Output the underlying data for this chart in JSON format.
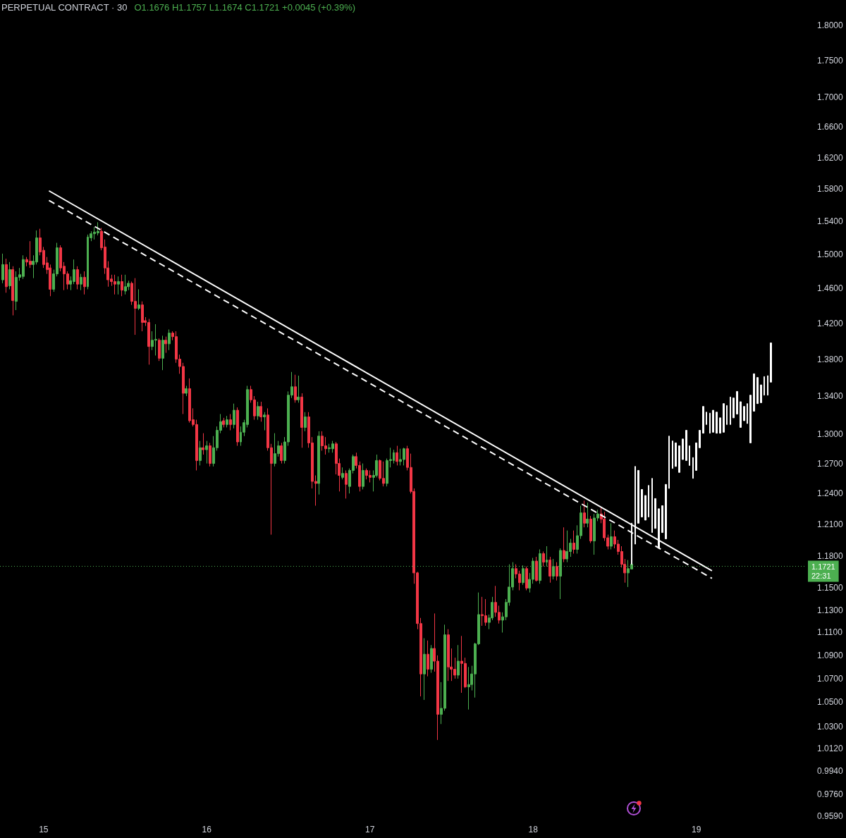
{
  "chart_data": {
    "type": "candlestick",
    "title": "PERPETUAL CONTRACT · 30",
    "subtitle": "O1.1676 H1.1757 L1.1674 C1.1721 +0.0045 (+0.39%)",
    "xlim": [
      14.733,
      19.671
    ],
    "xticks": [
      15,
      16,
      17,
      18,
      19
    ],
    "ylim": [
      0.959,
      1.837
    ],
    "log": true,
    "yticks": [
      {
        "value": 1.8,
        "label": "1.8000"
      },
      {
        "value": 1.75,
        "label": "1.7500"
      },
      {
        "value": 1.7,
        "label": "1.7000"
      },
      {
        "value": 1.66,
        "label": "1.6600"
      },
      {
        "value": 1.62,
        "label": "1.6200"
      },
      {
        "value": 1.58,
        "label": "1.5800"
      },
      {
        "value": 1.54,
        "label": "1.5400"
      },
      {
        "value": 1.5,
        "label": "1.5000"
      },
      {
        "value": 1.46,
        "label": "1.4600"
      },
      {
        "value": 1.42,
        "label": "1.4200"
      },
      {
        "value": 1.38,
        "label": "1.3800"
      },
      {
        "value": 1.34,
        "label": "1.3400"
      },
      {
        "value": 1.3,
        "label": "1.3000"
      },
      {
        "value": 1.27,
        "label": "1.2700"
      },
      {
        "value": 1.24,
        "label": "1.2400"
      },
      {
        "value": 1.21,
        "label": "1.2100"
      },
      {
        "value": 1.18,
        "label": "1.1800"
      },
      {
        "value": 1.15,
        "label": "1.1500"
      },
      {
        "value": 1.13,
        "label": "1.1300"
      },
      {
        "value": 1.11,
        "label": "1.1100"
      },
      {
        "value": 1.09,
        "label": "1.0900"
      },
      {
        "value": 1.07,
        "label": "1.0700"
      },
      {
        "value": 1.05,
        "label": "1.0500"
      },
      {
        "value": 1.03,
        "label": "1.0300"
      },
      {
        "value": 1.012,
        "label": "1.0120"
      },
      {
        "value": 0.994,
        "label": "0.9940"
      },
      {
        "value": 0.976,
        "label": "0.9760"
      },
      {
        "value": 0.959,
        "label": "0.9590"
      }
    ],
    "grid": false,
    "ref_lines": [
      {
        "axis": "y",
        "value": 1.1721,
        "label": "1.1721\n22:31",
        "color": "#4caf50",
        "line_style": "dotted"
      }
    ],
    "series": [
      {
        "x": [
          14.75,
          14.7708,
          14.7917,
          14.8125,
          14.8333,
          14.8542,
          14.875,
          14.8958,
          14.9167,
          14.9375,
          14.9583,
          14.9792,
          15,
          15.0208,
          15.0417,
          15.0625,
          15.0833,
          15.1042,
          15.125,
          15.1458,
          15.1667,
          15.1875,
          15.2083,
          15.2292,
          15.25,
          15.2708,
          15.2917,
          15.3125,
          15.3333,
          15.3542,
          15.375,
          15.3958,
          15.4167,
          15.4375,
          15.4583,
          15.4792,
          15.5,
          15.5208,
          15.5417,
          15.5625,
          15.5833,
          15.6042,
          15.625,
          15.6458,
          15.6667,
          15.6875,
          15.7083,
          15.7292,
          15.75,
          15.7708,
          15.7917,
          15.8125,
          15.8333,
          15.8542,
          15.875,
          15.8958,
          15.9167,
          15.9375,
          15.9583,
          15.9792,
          16,
          16.0208,
          16.0417,
          16.0625,
          16.0833,
          16.1042,
          16.125,
          16.1458,
          16.1667,
          16.1875,
          16.2083,
          16.2292,
          16.25,
          16.2708,
          16.2917,
          16.3125,
          16.3333,
          16.3542,
          16.375,
          16.3958,
          16.4167,
          16.4375,
          16.4583,
          16.4792,
          16.5,
          16.5208,
          16.5417,
          16.5625,
          16.5833,
          16.6042,
          16.625,
          16.6458,
          16.6667,
          16.6875,
          16.7083,
          16.7292,
          16.75,
          16.7708,
          16.7917,
          16.8125,
          16.8333,
          16.8542,
          16.875,
          16.8958,
          16.9167,
          16.9375,
          16.9583,
          16.9792,
          17,
          17.0208,
          17.0417,
          17.0625,
          17.0833,
          17.1042,
          17.125,
          17.1458,
          17.1667,
          17.1875,
          17.2083,
          17.2292,
          17.25,
          17.2708,
          17.2917,
          17.3125,
          17.3333,
          17.3542,
          17.375,
          17.3958,
          17.4167,
          17.4375,
          17.4583,
          17.4792,
          17.5,
          17.5208,
          17.5417,
          17.5625,
          17.5833,
          17.6042,
          17.625,
          17.6458,
          17.6667,
          17.6875,
          17.7083,
          17.7292,
          17.75,
          17.7708,
          17.7917,
          17.8125,
          17.8333,
          17.8542,
          17.875,
          17.8958,
          17.9167,
          17.9375,
          17.9583,
          17.9792,
          18,
          18.0208,
          18.0417,
          18.0625,
          18.0833,
          18.1042,
          18.125,
          18.1458,
          18.1667,
          18.1875,
          18.2083,
          18.2292,
          18.25,
          18.2708,
          18.2917,
          18.3125,
          18.3333,
          18.3542,
          18.375,
          18.3958,
          18.4167,
          18.4375,
          18.4583,
          18.4792,
          18.5,
          18.5208,
          18.5417,
          18.5625,
          18.5833,
          18.6042
        ],
        "ohlc": [
          [
            1.47,
            1.501,
            1.466,
            1.488
          ],
          [
            1.488,
            1.495,
            1.455,
            1.462
          ],
          [
            1.463,
            1.491,
            1.459,
            1.482
          ],
          [
            1.482,
            1.486,
            1.429,
            1.446
          ],
          [
            1.445,
            1.48,
            1.435,
            1.473
          ],
          [
            1.473,
            1.484,
            1.469,
            1.476
          ],
          [
            1.474,
            1.499,
            1.471,
            1.494
          ],
          [
            1.494,
            1.497,
            1.486,
            1.491
          ],
          [
            1.492,
            1.516,
            1.484,
            1.488
          ],
          [
            1.488,
            1.499,
            1.472,
            1.492
          ],
          [
            1.491,
            1.529,
            1.488,
            1.52
          ],
          [
            1.52,
            1.531,
            1.499,
            1.503
          ],
          [
            1.505,
            1.509,
            1.484,
            1.488
          ],
          [
            1.49,
            1.497,
            1.477,
            1.482
          ],
          [
            1.484,
            1.488,
            1.451,
            1.459
          ],
          [
            1.459,
            1.482,
            1.456,
            1.477
          ],
          [
            1.477,
            1.514,
            1.474,
            1.508
          ],
          [
            1.508,
            1.511,
            1.48,
            1.484
          ],
          [
            1.486,
            1.491,
            1.458,
            1.477
          ],
          [
            1.477,
            1.48,
            1.459,
            1.465
          ],
          [
            1.465,
            1.474,
            1.458,
            1.469
          ],
          [
            1.468,
            1.494,
            1.465,
            1.482
          ],
          [
            1.482,
            1.486,
            1.459,
            1.465
          ],
          [
            1.465,
            1.477,
            1.458,
            1.473
          ],
          [
            1.473,
            1.48,
            1.453,
            1.462
          ],
          [
            1.462,
            1.524,
            1.459,
            1.521
          ],
          [
            1.52,
            1.528,
            1.516,
            1.525
          ],
          [
            1.525,
            1.533,
            1.518,
            1.527
          ],
          [
            1.526,
            1.539,
            1.523,
            1.528
          ],
          [
            1.528,
            1.532,
            1.505,
            1.508
          ],
          [
            1.509,
            1.518,
            1.477,
            1.484
          ],
          [
            1.484,
            1.492,
            1.462,
            1.47
          ],
          [
            1.471,
            1.476,
            1.463,
            1.468
          ],
          [
            1.468,
            1.476,
            1.453,
            1.465
          ],
          [
            1.465,
            1.474,
            1.453,
            1.468
          ],
          [
            1.468,
            1.476,
            1.451,
            1.458
          ],
          [
            1.457,
            1.476,
            1.453,
            1.462
          ],
          [
            1.462,
            1.469,
            1.458,
            1.466
          ],
          [
            1.466,
            1.468,
            1.441,
            1.445
          ],
          [
            1.445,
            1.472,
            1.407,
            1.437
          ],
          [
            1.437,
            1.459,
            1.435,
            1.441
          ],
          [
            1.441,
            1.445,
            1.411,
            1.421
          ],
          [
            1.423,
            1.427,
            1.417,
            1.421
          ],
          [
            1.421,
            1.425,
            1.374,
            1.394
          ],
          [
            1.394,
            1.411,
            1.39,
            1.401
          ],
          [
            1.401,
            1.419,
            1.384,
            1.402
          ],
          [
            1.401,
            1.403,
            1.378,
            1.381
          ],
          [
            1.381,
            1.406,
            1.368,
            1.401
          ],
          [
            1.401,
            1.405,
            1.387,
            1.397
          ],
          [
            1.397,
            1.413,
            1.39,
            1.409
          ],
          [
            1.409,
            1.411,
            1.401,
            1.405
          ],
          [
            1.405,
            1.411,
            1.376,
            1.38
          ],
          [
            1.38,
            1.385,
            1.364,
            1.372
          ],
          [
            1.372,
            1.376,
            1.321,
            1.343
          ],
          [
            1.343,
            1.351,
            1.34,
            1.348
          ],
          [
            1.348,
            1.359,
            1.312,
            1.314
          ],
          [
            1.315,
            1.327,
            1.308,
            1.31
          ],
          [
            1.31,
            1.315,
            1.263,
            1.273
          ],
          [
            1.273,
            1.293,
            1.268,
            1.286
          ],
          [
            1.286,
            1.301,
            1.279,
            1.284
          ],
          [
            1.284,
            1.293,
            1.27,
            1.288
          ],
          [
            1.288,
            1.291,
            1.267,
            1.27
          ],
          [
            1.27,
            1.298,
            1.267,
            1.286
          ],
          [
            1.286,
            1.308,
            1.283,
            1.304
          ],
          [
            1.304,
            1.321,
            1.301,
            1.313
          ],
          [
            1.314,
            1.317,
            1.307,
            1.31
          ],
          [
            1.31,
            1.319,
            1.307,
            1.315
          ],
          [
            1.315,
            1.321,
            1.304,
            1.31
          ],
          [
            1.31,
            1.332,
            1.306,
            1.325
          ],
          [
            1.325,
            1.328,
            1.288,
            1.292
          ],
          [
            1.292,
            1.308,
            1.288,
            1.302
          ],
          [
            1.302,
            1.315,
            1.298,
            1.312
          ],
          [
            1.31,
            1.351,
            1.307,
            1.347
          ],
          [
            1.347,
            1.351,
            1.333,
            1.336
          ],
          [
            1.336,
            1.34,
            1.315,
            1.319
          ],
          [
            1.319,
            1.334,
            1.315,
            1.329
          ],
          [
            1.329,
            1.334,
            1.313,
            1.318
          ],
          [
            1.318,
            1.323,
            1.304,
            1.32
          ],
          [
            1.32,
            1.327,
            1.283,
            1.286
          ],
          [
            1.286,
            1.29,
            1.2,
            1.27
          ],
          [
            1.27,
            1.301,
            1.267,
            1.28
          ],
          [
            1.28,
            1.293,
            1.277,
            1.288
          ],
          [
            1.288,
            1.291,
            1.27,
            1.273
          ],
          [
            1.273,
            1.297,
            1.27,
            1.292
          ],
          [
            1.292,
            1.345,
            1.288,
            1.341
          ],
          [
            1.341,
            1.366,
            1.338,
            1.35
          ],
          [
            1.35,
            1.363,
            1.333,
            1.336
          ],
          [
            1.336,
            1.362,
            1.333,
            1.339
          ],
          [
            1.339,
            1.343,
            1.286,
            1.307
          ],
          [
            1.307,
            1.323,
            1.303,
            1.318
          ],
          [
            1.318,
            1.323,
            1.286,
            1.291
          ],
          [
            1.291,
            1.297,
            1.245,
            1.252
          ],
          [
            1.252,
            1.258,
            1.228,
            1.25
          ],
          [
            1.25,
            1.303,
            1.239,
            1.298
          ],
          [
            1.298,
            1.303,
            1.283,
            1.288
          ],
          [
            1.288,
            1.297,
            1.279,
            1.285
          ],
          [
            1.285,
            1.29,
            1.281,
            1.286
          ],
          [
            1.285,
            1.293,
            1.281,
            1.29
          ],
          [
            1.29,
            1.292,
            1.259,
            1.27
          ],
          [
            1.27,
            1.275,
            1.242,
            1.258
          ],
          [
            1.256,
            1.266,
            1.254,
            1.26
          ],
          [
            1.26,
            1.263,
            1.235,
            1.249
          ],
          [
            1.247,
            1.265,
            1.24,
            1.263
          ],
          [
            1.263,
            1.279,
            1.26,
            1.277
          ],
          [
            1.277,
            1.281,
            1.265,
            1.268
          ],
          [
            1.268,
            1.272,
            1.242,
            1.247
          ],
          [
            1.247,
            1.27,
            1.244,
            1.263
          ],
          [
            1.263,
            1.265,
            1.254,
            1.258
          ],
          [
            1.258,
            1.263,
            1.251,
            1.256
          ],
          [
            1.256,
            1.263,
            1.242,
            1.258
          ],
          [
            1.258,
            1.279,
            1.256,
            1.273
          ],
          [
            1.273,
            1.274,
            1.253,
            1.255
          ],
          [
            1.255,
            1.272,
            1.247,
            1.25
          ],
          [
            1.25,
            1.275,
            1.247,
            1.273
          ],
          [
            1.273,
            1.286,
            1.266,
            1.274
          ],
          [
            1.273,
            1.284,
            1.27,
            1.281
          ],
          [
            1.281,
            1.288,
            1.268,
            1.272
          ],
          [
            1.272,
            1.285,
            1.268,
            1.274
          ],
          [
            1.274,
            1.286,
            1.268,
            1.285
          ],
          [
            1.285,
            1.288,
            1.263,
            1.266
          ],
          [
            1.266,
            1.28,
            1.24,
            1.242
          ],
          [
            1.242,
            1.245,
            1.154,
            1.164
          ],
          [
            1.164,
            1.165,
            1.113,
            1.118
          ],
          [
            1.118,
            1.123,
            1.055,
            1.074
          ],
          [
            1.074,
            1.105,
            1.052,
            1.091
          ],
          [
            1.091,
            1.103,
            1.072,
            1.078
          ],
          [
            1.078,
            1.099,
            1.075,
            1.096
          ],
          [
            1.096,
            1.127,
            1.076,
            1.085
          ],
          [
            1.085,
            1.09,
            1.019,
            1.04
          ],
          [
            1.04,
            1.067,
            1.032,
            1.045
          ],
          [
            1.045,
            1.117,
            1.043,
            1.108
          ],
          [
            1.108,
            1.113,
            1.068,
            1.08
          ],
          [
            1.08,
            1.096,
            1.068,
            1.078
          ],
          [
            1.078,
            1.088,
            1.07,
            1.073
          ],
          [
            1.073,
            1.099,
            1.07,
            1.085
          ],
          [
            1.085,
            1.107,
            1.058,
            1.083
          ],
          [
            1.083,
            1.088,
            1.062,
            1.063
          ],
          [
            1.063,
            1.08,
            1.044,
            1.065
          ],
          [
            1.065,
            1.081,
            1.06,
            1.074
          ],
          [
            1.074,
            1.101,
            1.054,
            1.1
          ],
          [
            1.1,
            1.146,
            1.099,
            1.126
          ],
          [
            1.126,
            1.142,
            1.116,
            1.125
          ],
          [
            1.125,
            1.14,
            1.116,
            1.119
          ],
          [
            1.119,
            1.126,
            1.113,
            1.123
          ],
          [
            1.123,
            1.142,
            1.121,
            1.137
          ],
          [
            1.137,
            1.152,
            1.124,
            1.128
          ],
          [
            1.128,
            1.134,
            1.118,
            1.121
          ],
          [
            1.121,
            1.128,
            1.11,
            1.124
          ],
          [
            1.124,
            1.14,
            1.121,
            1.137
          ],
          [
            1.137,
            1.172,
            1.134,
            1.151
          ],
          [
            1.151,
            1.174,
            1.148,
            1.168
          ],
          [
            1.168,
            1.172,
            1.159,
            1.163
          ],
          [
            1.163,
            1.166,
            1.148,
            1.155
          ],
          [
            1.155,
            1.171,
            1.153,
            1.168
          ],
          [
            1.168,
            1.17,
            1.148,
            1.15
          ],
          [
            1.15,
            1.164,
            1.146,
            1.158
          ],
          [
            1.158,
            1.178,
            1.154,
            1.175
          ],
          [
            1.175,
            1.179,
            1.156,
            1.157
          ],
          [
            1.157,
            1.186,
            1.154,
            1.182
          ],
          [
            1.182,
            1.184,
            1.17,
            1.174
          ],
          [
            1.174,
            1.189,
            1.17,
            1.176
          ],
          [
            1.176,
            1.179,
            1.155,
            1.161
          ],
          [
            1.161,
            1.177,
            1.158,
            1.17
          ],
          [
            1.17,
            1.174,
            1.157,
            1.161
          ],
          [
            1.161,
            1.187,
            1.14,
            1.185
          ],
          [
            1.185,
            1.207,
            1.174,
            1.177
          ],
          [
            1.177,
            1.204,
            1.174,
            1.184
          ],
          [
            1.184,
            1.196,
            1.179,
            1.192
          ],
          [
            1.192,
            1.204,
            1.182,
            1.186
          ],
          [
            1.186,
            1.209,
            1.182,
            1.199
          ],
          [
            1.199,
            1.228,
            1.196,
            1.221
          ],
          [
            1.221,
            1.233,
            1.207,
            1.211
          ],
          [
            1.211,
            1.231,
            1.207,
            1.215
          ],
          [
            1.215,
            1.218,
            1.192,
            1.194
          ],
          [
            1.194,
            1.22,
            1.181,
            1.216
          ],
          [
            1.216,
            1.224,
            1.213,
            1.22
          ],
          [
            1.22,
            1.226,
            1.211,
            1.215
          ],
          [
            1.215,
            1.222,
            1.194,
            1.197
          ],
          [
            1.197,
            1.2,
            1.186,
            1.189
          ],
          [
            1.189,
            1.211,
            1.186,
            1.198
          ],
          [
            1.198,
            1.204,
            1.187,
            1.191
          ],
          [
            1.191,
            1.195,
            1.181,
            1.184
          ],
          [
            1.184,
            1.189,
            1.169,
            1.172
          ],
          [
            1.172,
            1.177,
            1.155,
            1.164
          ],
          [
            1.164,
            1.176,
            1.151,
            1.168
          ],
          [
            1.1676,
            1.1757,
            1.1674,
            1.1721
          ]
        ],
        "colors": [
          "#4caf50",
          "#f23645",
          "#4caf50",
          "#f23645",
          "#4caf50",
          "#4caf50",
          "#4caf50",
          "#f23645",
          "#f23645",
          "#4caf50",
          "#4caf50",
          "#f23645",
          "#f23645",
          "#f23645",
          "#f23645",
          "#4caf50",
          "#4caf50",
          "#f23645",
          "#f23645",
          "#f23645",
          "#4caf50",
          "#4caf50",
          "#f23645",
          "#4caf50",
          "#f23645",
          "#4caf50",
          "#4caf50",
          "#4caf50",
          "#4caf50",
          "#f23645",
          "#f23645",
          "#f23645",
          "#f23645",
          "#f23645",
          "#4caf50",
          "#f23645",
          "#4caf50",
          "#4caf50",
          "#f23645",
          "#f23645",
          "#4caf50",
          "#f23645",
          "#f23645",
          "#f23645",
          "#4caf50",
          "#4caf50",
          "#f23645",
          "#4caf50",
          "#f23645",
          "#4caf50",
          "#f23645",
          "#f23645",
          "#f23645",
          "#f23645",
          "#4caf50",
          "#f23645",
          "#f23645",
          "#f23645",
          "#4caf50",
          "#f23645",
          "#4caf50",
          "#f23645",
          "#4caf50",
          "#4caf50",
          "#4caf50",
          "#f23645",
          "#4caf50",
          "#f23645",
          "#4caf50",
          "#f23645",
          "#4caf50",
          "#4caf50",
          "#4caf50",
          "#f23645",
          "#f23645",
          "#4caf50",
          "#f23645",
          "#4caf50",
          "#f23645",
          "#f23645",
          "#4caf50",
          "#4caf50",
          "#f23645",
          "#4caf50",
          "#4caf50",
          "#4caf50",
          "#f23645",
          "#4caf50",
          "#f23645",
          "#4caf50",
          "#f23645",
          "#f23645",
          "#f23645",
          "#4caf50",
          "#f23645",
          "#f23645",
          "#4caf50",
          "#4caf50",
          "#f23645",
          "#f23645",
          "#4caf50",
          "#f23645",
          "#4caf50",
          "#4caf50",
          "#f23645",
          "#f23645",
          "#4caf50",
          "#f23645",
          "#f23645",
          "#4caf50",
          "#4caf50",
          "#f23645",
          "#f23645",
          "#4caf50",
          "#4caf50",
          "#4caf50",
          "#f23645",
          "#4caf50",
          "#4caf50",
          "#f23645",
          "#f23645",
          "#f23645",
          "#f23645",
          "#f23645",
          "#4caf50",
          "#f23645",
          "#4caf50",
          "#f23645",
          "#f23645",
          "#4caf50",
          "#4caf50",
          "#f23645",
          "#f23645",
          "#f23645",
          "#4caf50",
          "#f23645",
          "#f23645",
          "#4caf50",
          "#4caf50",
          "#4caf50",
          "#4caf50",
          "#f23645",
          "#f23645",
          "#4caf50",
          "#4caf50",
          "#f23645",
          "#f23645",
          "#4caf50",
          "#4caf50",
          "#4caf50",
          "#4caf50",
          "#f23645",
          "#f23645",
          "#4caf50",
          "#f23645",
          "#4caf50",
          "#4caf50",
          "#f23645",
          "#4caf50",
          "#f23645",
          "#4caf50",
          "#f23645",
          "#4caf50",
          "#f23645",
          "#4caf50",
          "#f23645",
          "#4caf50",
          "#4caf50",
          "#f23645",
          "#4caf50",
          "#4caf50",
          "#f23645",
          "#4caf50",
          "#f23645",
          "#4caf50",
          "#4caf50",
          "#f23645",
          "#f23645",
          "#f23645",
          "#4caf50",
          "#f23645",
          "#f23645",
          "#f23645",
          "#f23645",
          "#4caf50",
          "#4caf50"
        ]
      },
      {
        "color": "#ffffff",
        "x": [
          18.6042,
          18.625,
          18.6458,
          18.6667,
          18.6875,
          18.7083,
          18.7292,
          18.75,
          18.7708,
          18.7917,
          18.8125,
          18.8333,
          18.8542,
          18.875,
          18.8958,
          18.9167,
          18.9375,
          18.9583,
          18.9792,
          19,
          19.0208,
          19.0417,
          19.0625,
          19.0833,
          19.1042,
          19.125,
          19.1458,
          19.1667,
          19.1875,
          19.2083,
          19.2292,
          19.25,
          19.2708,
          19.2917,
          19.3125,
          19.3333,
          19.3542,
          19.375,
          19.3958,
          19.4167,
          19.4375,
          19.4583
        ],
        "ohlc": [
          [
            1.172,
            1.211,
            1.172,
            1.211
          ],
          [
            1.191,
            1.267,
            1.191,
            1.267
          ],
          [
            1.211,
            1.263,
            1.211,
            1.263
          ],
          [
            1.217,
            1.244,
            1.217,
            1.244
          ],
          [
            1.214,
            1.238,
            1.214,
            1.238
          ],
          [
            1.217,
            1.248,
            1.217,
            1.248
          ],
          [
            1.202,
            1.255,
            1.202,
            1.255
          ],
          [
            1.206,
            1.235,
            1.206,
            1.235
          ],
          [
            1.187,
            1.225,
            1.187,
            1.225
          ],
          [
            1.202,
            1.228,
            1.202,
            1.228
          ],
          [
            1.196,
            1.249,
            1.196,
            1.249
          ],
          [
            1.245,
            1.298,
            1.245,
            1.298
          ],
          [
            1.265,
            1.293,
            1.265,
            1.293
          ],
          [
            1.267,
            1.291,
            1.267,
            1.291
          ],
          [
            1.261,
            1.288,
            1.261,
            1.288
          ],
          [
            1.274,
            1.295,
            1.274,
            1.295
          ],
          [
            1.273,
            1.304,
            1.273,
            1.304
          ],
          [
            1.268,
            1.288,
            1.268,
            1.288
          ],
          [
            1.255,
            1.276,
            1.255,
            1.276
          ],
          [
            1.263,
            1.291,
            1.263,
            1.291
          ],
          [
            1.286,
            1.304,
            1.286,
            1.304
          ],
          [
            1.301,
            1.329,
            1.301,
            1.329
          ],
          [
            1.31,
            1.323,
            1.31,
            1.323
          ],
          [
            1.301,
            1.322,
            1.301,
            1.322
          ],
          [
            1.302,
            1.325,
            1.302,
            1.325
          ],
          [
            1.301,
            1.323,
            1.301,
            1.323
          ],
          [
            1.301,
            1.317,
            1.301,
            1.317
          ],
          [
            1.302,
            1.332,
            1.302,
            1.332
          ],
          [
            1.31,
            1.33,
            1.31,
            1.33
          ],
          [
            1.31,
            1.339,
            1.31,
            1.339
          ],
          [
            1.317,
            1.338,
            1.317,
            1.338
          ],
          [
            1.321,
            1.345,
            1.321,
            1.345
          ],
          [
            1.307,
            1.334,
            1.307,
            1.334
          ],
          [
            1.314,
            1.329,
            1.314,
            1.329
          ],
          [
            1.311,
            1.332,
            1.311,
            1.332
          ],
          [
            1.291,
            1.341,
            1.291,
            1.341
          ],
          [
            1.324,
            1.364,
            1.324,
            1.364
          ],
          [
            1.332,
            1.36,
            1.332,
            1.36
          ],
          [
            1.333,
            1.352,
            1.333,
            1.352
          ],
          [
            1.341,
            1.361,
            1.341,
            1.361
          ],
          [
            1.341,
            1.362,
            1.341,
            1.362
          ],
          [
            1.355,
            1.398,
            1.355,
            1.398
          ]
        ]
      },
      {
        "type": "line",
        "color": "#ffffff",
        "x": [
          15.033,
          19.096
        ],
        "values": [
          1.578,
          1.166
        ],
        "line_style": "solid",
        "marker": "none"
      },
      {
        "type": "line",
        "color": "#ffffff",
        "x": [
          15.033,
          19.096
        ],
        "values": [
          1.566,
          1.159
        ],
        "line_style": "dashed",
        "marker": "none"
      }
    ]
  }
}
